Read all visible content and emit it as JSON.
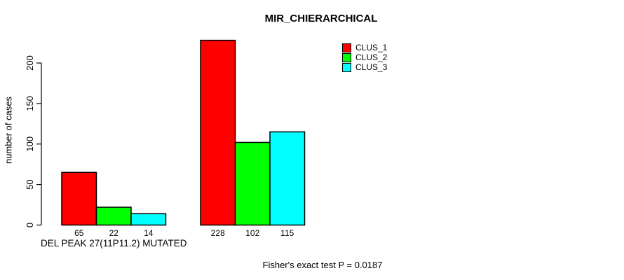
{
  "chart_data": {
    "type": "bar",
    "title": "MIR_CHIERARCHICAL",
    "ylabel": "number of cases",
    "xlabel": "",
    "ylim": [
      0,
      200
    ],
    "yticks": [
      0,
      50,
      100,
      150,
      200
    ],
    "grid": false,
    "categories": [
      "DEL PEAK 27(11P11.2) MUTATED",
      ""
    ],
    "groups": [
      {
        "label": "DEL PEAK 27(11P11.2) MUTATED",
        "values": [
          65,
          22,
          14
        ]
      },
      {
        "label": "",
        "values": [
          228,
          102,
          115
        ]
      }
    ],
    "series": [
      {
        "name": "CLUS_1",
        "values": [
          65,
          228
        ],
        "color": "#ff0000"
      },
      {
        "name": "CLUS_2",
        "values": [
          22,
          102
        ],
        "color": "#00ff00"
      },
      {
        "name": "CLUS_3",
        "values": [
          14,
          115
        ],
        "color": "#00ffff"
      }
    ],
    "bar_border_color": "#000000",
    "legend_position": "top-right",
    "footnote": "Fisher's exact test P = 0.0187"
  }
}
